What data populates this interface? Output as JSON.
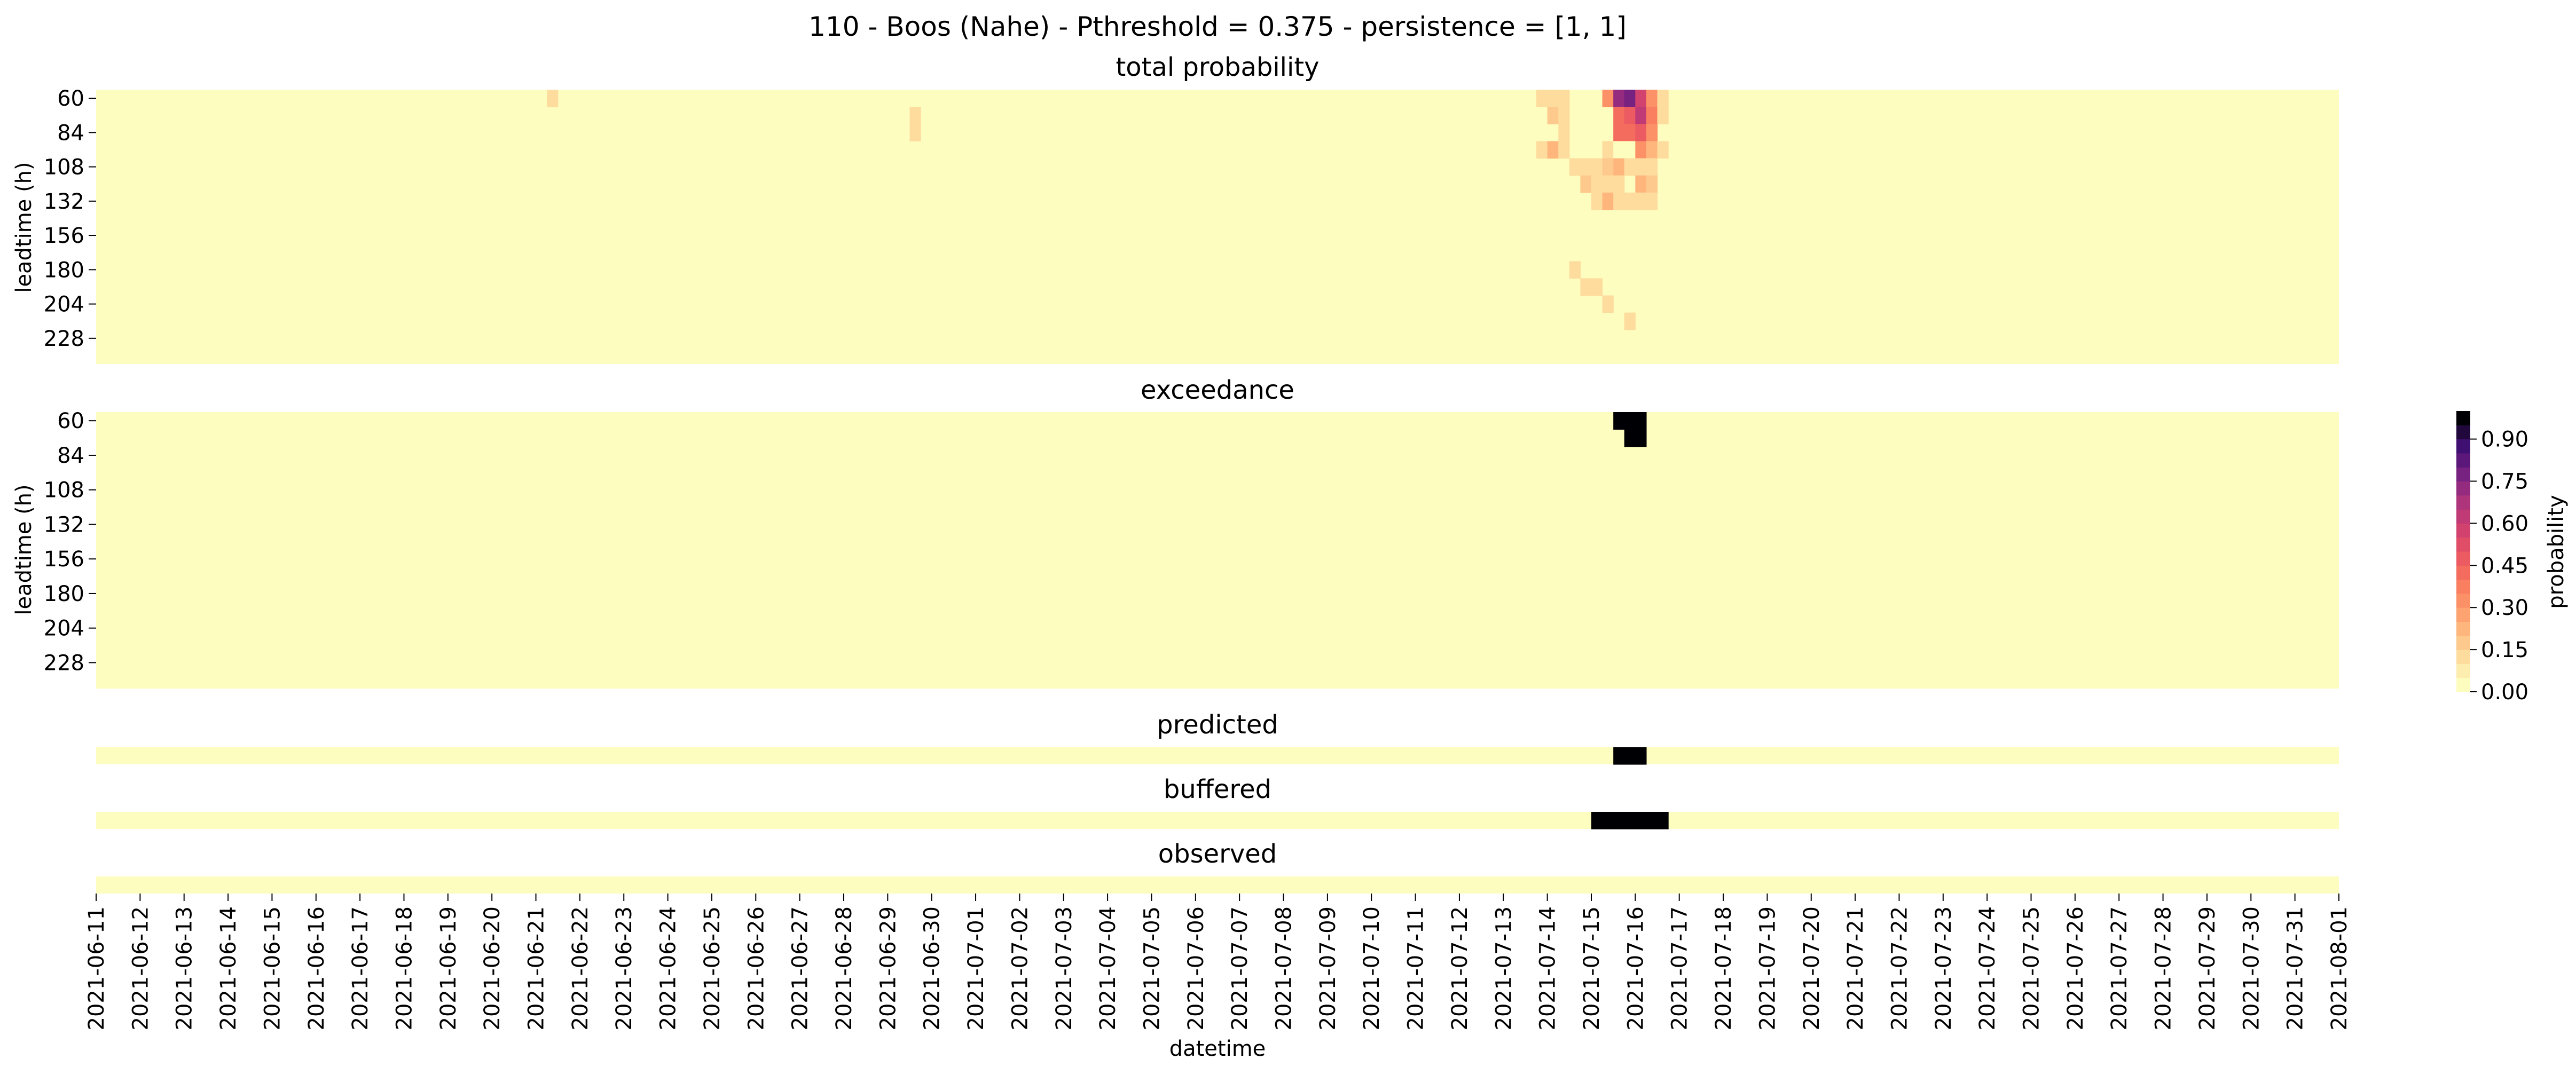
{
  "chart_data": {
    "type": "heatmap",
    "title": "110 - Boos (Nahe) - Pthreshold = 0.375 - persistence = [1, 1]",
    "xlabel": "datetime",
    "x_ticks": [
      "2021-06-11",
      "2021-06-12",
      "2021-06-13",
      "2021-06-14",
      "2021-06-15",
      "2021-06-16",
      "2021-06-17",
      "2021-06-18",
      "2021-06-19",
      "2021-06-20",
      "2021-06-21",
      "2021-06-22",
      "2021-06-23",
      "2021-06-24",
      "2021-06-25",
      "2021-06-26",
      "2021-06-27",
      "2021-06-28",
      "2021-06-29",
      "2021-06-30",
      "2021-07-01",
      "2021-07-02",
      "2021-07-03",
      "2021-07-04",
      "2021-07-05",
      "2021-07-06",
      "2021-07-07",
      "2021-07-08",
      "2021-07-09",
      "2021-07-10",
      "2021-07-11",
      "2021-07-12",
      "2021-07-13",
      "2021-07-14",
      "2021-07-15",
      "2021-07-16",
      "2021-07-17",
      "2021-07-18",
      "2021-07-19",
      "2021-07-20",
      "2021-07-21",
      "2021-07-22",
      "2021-07-23",
      "2021-07-24",
      "2021-07-25",
      "2021-07-26",
      "2021-07-27",
      "2021-07-28",
      "2021-07-29",
      "2021-07-30",
      "2021-07-31",
      "2021-08-01"
    ],
    "steps_per_day": 4,
    "leadtimes": [
      60,
      72,
      84,
      96,
      108,
      120,
      132,
      144,
      156,
      168,
      180,
      192,
      204,
      216,
      228,
      240
    ],
    "ytick_labels": [
      "60",
      "84",
      "108",
      "132",
      "156",
      "180",
      "204",
      "228"
    ],
    "ylabel": "leadtime (h)",
    "panels": [
      {
        "title": "total probability",
        "kind": "matrix",
        "cells": [
          {
            "date": "2021-06-21",
            "step": 1,
            "lead": 60,
            "p": 0.12
          },
          {
            "date": "2021-06-29",
            "step": 2,
            "lead": 72,
            "p": 0.1
          },
          {
            "date": "2021-06-29",
            "step": 2,
            "lead": 84,
            "p": 0.1
          },
          {
            "date": "2021-07-13",
            "step": 3,
            "lead": 60,
            "p": 0.12
          },
          {
            "date": "2021-07-14",
            "step": 0,
            "lead": 60,
            "p": 0.12
          },
          {
            "date": "2021-07-14",
            "step": 1,
            "lead": 60,
            "p": 0.12
          },
          {
            "date": "2021-07-14",
            "step": 0,
            "lead": 72,
            "p": 0.18
          },
          {
            "date": "2021-07-14",
            "step": 1,
            "lead": 72,
            "p": 0.1
          },
          {
            "date": "2021-07-14",
            "step": 1,
            "lead": 84,
            "p": 0.12
          },
          {
            "date": "2021-07-13",
            "step": 3,
            "lead": 96,
            "p": 0.1
          },
          {
            "date": "2021-07-14",
            "step": 0,
            "lead": 96,
            "p": 0.2
          },
          {
            "date": "2021-07-14",
            "step": 1,
            "lead": 96,
            "p": 0.1
          },
          {
            "date": "2021-07-14",
            "step": 2,
            "lead": 108,
            "p": 0.1
          },
          {
            "date": "2021-07-14",
            "step": 3,
            "lead": 108,
            "p": 0.1
          },
          {
            "date": "2021-07-14",
            "step": 3,
            "lead": 120,
            "p": 0.18
          },
          {
            "date": "2021-07-15",
            "step": 0,
            "lead": 120,
            "p": 0.1
          },
          {
            "date": "2021-07-15",
            "step": 0,
            "lead": 108,
            "p": 0.1
          },
          {
            "date": "2021-07-15",
            "step": 1,
            "lead": 60,
            "p": 0.3
          },
          {
            "date": "2021-07-15",
            "step": 2,
            "lead": 60,
            "p": 0.7
          },
          {
            "date": "2021-07-15",
            "step": 3,
            "lead": 60,
            "p": 0.75
          },
          {
            "date": "2021-07-16",
            "step": 0,
            "lead": 60,
            "p": 0.55
          },
          {
            "date": "2021-07-16",
            "step": 1,
            "lead": 60,
            "p": 0.3
          },
          {
            "date": "2021-07-16",
            "step": 2,
            "lead": 60,
            "p": 0.12
          },
          {
            "date": "2021-07-15",
            "step": 2,
            "lead": 72,
            "p": 0.4
          },
          {
            "date": "2021-07-15",
            "step": 3,
            "lead": 72,
            "p": 0.45
          },
          {
            "date": "2021-07-16",
            "step": 0,
            "lead": 72,
            "p": 0.6
          },
          {
            "date": "2021-07-16",
            "step": 1,
            "lead": 72,
            "p": 0.35
          },
          {
            "date": "2021-07-16",
            "step": 2,
            "lead": 72,
            "p": 0.12
          },
          {
            "date": "2021-07-15",
            "step": 2,
            "lead": 84,
            "p": 0.4
          },
          {
            "date": "2021-07-15",
            "step": 3,
            "lead": 84,
            "p": 0.4
          },
          {
            "date": "2021-07-16",
            "step": 0,
            "lead": 84,
            "p": 0.45
          },
          {
            "date": "2021-07-16",
            "step": 1,
            "lead": 84,
            "p": 0.3
          },
          {
            "date": "2021-07-15",
            "step": 1,
            "lead": 96,
            "p": 0.1
          },
          {
            "date": "2021-07-15",
            "step": 2,
            "lead": 96,
            "p": 0.02
          },
          {
            "date": "2021-07-15",
            "step": 3,
            "lead": 96,
            "p": 0.02
          },
          {
            "date": "2021-07-16",
            "step": 0,
            "lead": 96,
            "p": 0.3
          },
          {
            "date": "2021-07-16",
            "step": 1,
            "lead": 96,
            "p": 0.2
          },
          {
            "date": "2021-07-16",
            "step": 2,
            "lead": 96,
            "p": 0.12
          },
          {
            "date": "2021-07-15",
            "step": 1,
            "lead": 108,
            "p": 0.15
          },
          {
            "date": "2021-07-15",
            "step": 2,
            "lead": 108,
            "p": 0.2
          },
          {
            "date": "2021-07-15",
            "step": 3,
            "lead": 108,
            "p": 0.1
          },
          {
            "date": "2021-07-16",
            "step": 0,
            "lead": 108,
            "p": 0.1
          },
          {
            "date": "2021-07-16",
            "step": 1,
            "lead": 108,
            "p": 0.1
          },
          {
            "date": "2021-07-15",
            "step": 0,
            "lead": 120,
            "p": 0.12
          },
          {
            "date": "2021-07-15",
            "step": 1,
            "lead": 120,
            "p": 0.12
          },
          {
            "date": "2021-07-15",
            "step": 2,
            "lead": 120,
            "p": 0.1
          },
          {
            "date": "2021-07-16",
            "step": 0,
            "lead": 120,
            "p": 0.2
          },
          {
            "date": "2021-07-16",
            "step": 1,
            "lead": 120,
            "p": 0.15
          },
          {
            "date": "2021-07-15",
            "step": 0,
            "lead": 132,
            "p": 0.12
          },
          {
            "date": "2021-07-15",
            "step": 1,
            "lead": 132,
            "p": 0.2
          },
          {
            "date": "2021-07-15",
            "step": 2,
            "lead": 132,
            "p": 0.1
          },
          {
            "date": "2021-07-15",
            "step": 3,
            "lead": 132,
            "p": 0.1
          },
          {
            "date": "2021-07-16",
            "step": 0,
            "lead": 132,
            "p": 0.1
          },
          {
            "date": "2021-07-16",
            "step": 1,
            "lead": 132,
            "p": 0.1
          },
          {
            "date": "2021-07-14",
            "step": 2,
            "lead": 180,
            "p": 0.12
          },
          {
            "date": "2021-07-14",
            "step": 3,
            "lead": 192,
            "p": 0.12
          },
          {
            "date": "2021-07-15",
            "step": 0,
            "lead": 192,
            "p": 0.12
          },
          {
            "date": "2021-07-15",
            "step": 1,
            "lead": 204,
            "p": 0.1
          },
          {
            "date": "2021-07-15",
            "step": 3,
            "lead": 216,
            "p": 0.12
          }
        ]
      },
      {
        "title": "exceedance",
        "kind": "matrix",
        "cells": [
          {
            "date": "2021-07-15",
            "step": 2,
            "lead": 60,
            "p": 1
          },
          {
            "date": "2021-07-15",
            "step": 3,
            "lead": 60,
            "p": 1
          },
          {
            "date": "2021-07-16",
            "step": 0,
            "lead": 60,
            "p": 1
          },
          {
            "date": "2021-07-15",
            "step": 3,
            "lead": 72,
            "p": 1
          },
          {
            "date": "2021-07-16",
            "step": 0,
            "lead": 72,
            "p": 1
          }
        ]
      },
      {
        "title": "predicted",
        "kind": "strip",
        "cells": [
          {
            "date": "2021-07-15",
            "step": 2,
            "p": 1
          },
          {
            "date": "2021-07-15",
            "step": 3,
            "p": 1
          },
          {
            "date": "2021-07-16",
            "step": 0,
            "p": 1
          }
        ]
      },
      {
        "title": "buffered",
        "kind": "strip",
        "cells": [
          {
            "date": "2021-07-15",
            "step": 0,
            "p": 1
          },
          {
            "date": "2021-07-15",
            "step": 1,
            "p": 1
          },
          {
            "date": "2021-07-15",
            "step": 2,
            "p": 1
          },
          {
            "date": "2021-07-15",
            "step": 3,
            "p": 1
          },
          {
            "date": "2021-07-16",
            "step": 0,
            "p": 1
          },
          {
            "date": "2021-07-16",
            "step": 1,
            "p": 1
          },
          {
            "date": "2021-07-16",
            "step": 2,
            "p": 1
          }
        ]
      },
      {
        "title": "observed",
        "kind": "strip",
        "cells": []
      }
    ],
    "colorbar": {
      "label": "probability",
      "ticks": [
        "0.00",
        "0.15",
        "0.30",
        "0.45",
        "0.60",
        "0.75",
        "0.90"
      ],
      "range": [
        0,
        1
      ],
      "levels": 20,
      "colormap": "magma_r",
      "base_color": "#fcfdbf"
    },
    "grid": false
  }
}
